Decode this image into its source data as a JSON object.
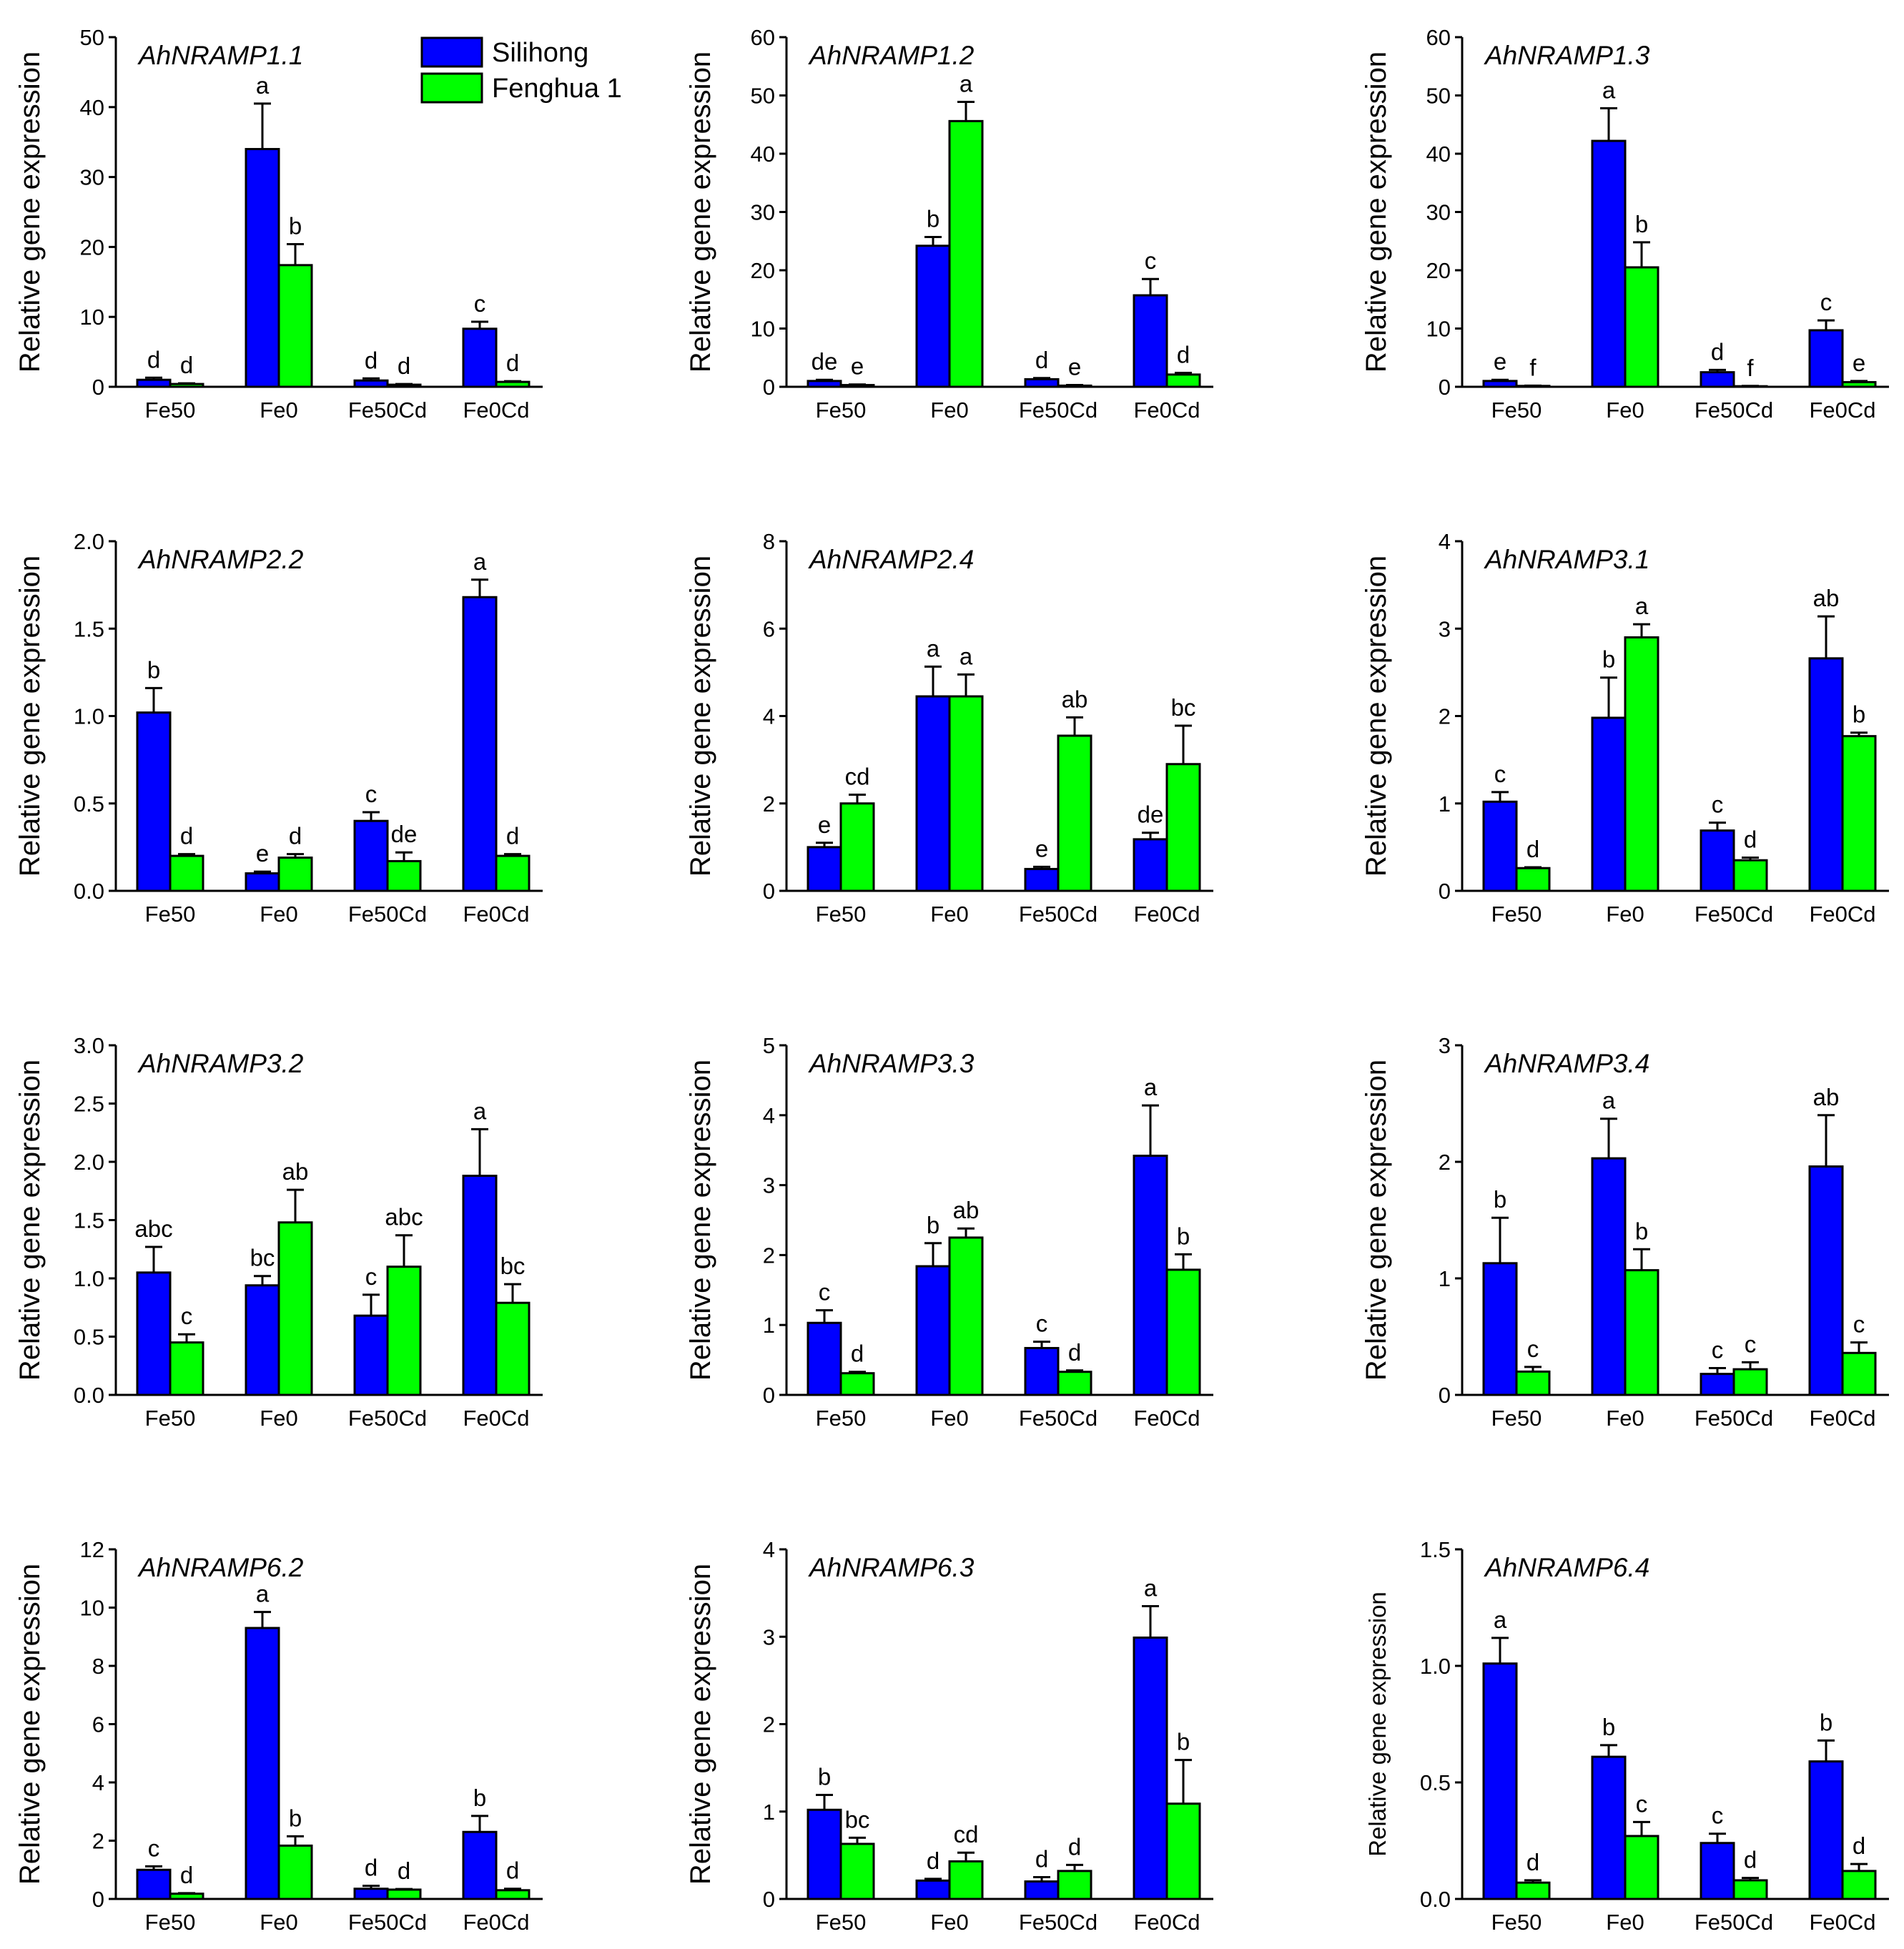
{
  "colors": {
    "silihong": "#0000ff",
    "fenghua": "#00ff00",
    "axis": "#000000"
  },
  "legend": [
    {
      "name": "Silihong",
      "color": "#0000ff"
    },
    {
      "name": "Fenghua 1",
      "color": "#00ff00"
    }
  ],
  "chart_data": [
    {
      "type": "bar",
      "title": "AhNRAMP1.1",
      "ylabel": "Relative gene expression",
      "categories": [
        "Fe50",
        "Fe0",
        "Fe50Cd",
        "Fe0Cd"
      ],
      "ylim": [
        0,
        50
      ],
      "yticks": [
        "0",
        "10",
        "20",
        "30",
        "40",
        "50"
      ],
      "series": [
        {
          "name": "Silihong",
          "values": [
            1.0,
            34.0,
            0.9,
            8.3
          ],
          "errors": [
            0.3,
            6.5,
            0.3,
            1.0
          ],
          "letters": [
            "d",
            "a",
            "d",
            "c"
          ]
        },
        {
          "name": "Fenghua 1",
          "values": [
            0.4,
            17.4,
            0.3,
            0.7
          ],
          "errors": [
            0.1,
            3.0,
            0.1,
            0.1
          ],
          "letters": [
            "d",
            "b",
            "d",
            "d"
          ]
        }
      ]
    },
    {
      "type": "bar",
      "title": "AhNRAMP1.2",
      "ylabel": "Relative gene expression",
      "categories": [
        "Fe50",
        "Fe0",
        "Fe50Cd",
        "Fe0Cd"
      ],
      "ylim": [
        0,
        60
      ],
      "yticks": [
        "0",
        "10",
        "20",
        "30",
        "40",
        "50",
        "60"
      ],
      "series": [
        {
          "name": "Silihong",
          "values": [
            1.0,
            24.2,
            1.3,
            15.7
          ],
          "errors": [
            0.2,
            1.5,
            0.2,
            2.8
          ],
          "letters": [
            "de",
            "b",
            "d",
            "c"
          ]
        },
        {
          "name": "Fenghua 1",
          "values": [
            0.3,
            45.6,
            0.2,
            2.1
          ],
          "errors": [
            0.1,
            3.3,
            0.1,
            0.3
          ],
          "letters": [
            "e",
            "a",
            "e",
            "d"
          ]
        }
      ]
    },
    {
      "type": "bar",
      "title": "AhNRAMP1.3",
      "ylabel": "Relative gene expression",
      "categories": [
        "Fe50",
        "Fe0",
        "Fe50Cd",
        "Fe0Cd"
      ],
      "ylim": [
        0,
        60
      ],
      "yticks": [
        "0",
        "10",
        "20",
        "30",
        "40",
        "50",
        "60"
      ],
      "series": [
        {
          "name": "Silihong",
          "values": [
            1.0,
            42.2,
            2.5,
            9.7
          ],
          "errors": [
            0.2,
            5.6,
            0.4,
            1.7
          ],
          "letters": [
            "e",
            "a",
            "d",
            "c"
          ]
        },
        {
          "name": "Fenghua 1",
          "values": [
            0.15,
            20.5,
            0.1,
            0.8
          ],
          "errors": [
            0.05,
            4.3,
            0.05,
            0.2
          ],
          "letters": [
            "f",
            "b",
            "f",
            "e"
          ]
        }
      ]
    },
    {
      "type": "bar",
      "title": "AhNRAMP2.2",
      "ylabel": "Relative gene expression",
      "categories": [
        "Fe50",
        "Fe0",
        "Fe50Cd",
        "Fe0Cd"
      ],
      "ylim": [
        0,
        2
      ],
      "yticks": [
        "0.0",
        "0.5",
        "1.0",
        "1.5",
        "2.0"
      ],
      "series": [
        {
          "name": "Silihong",
          "values": [
            1.02,
            0.1,
            0.4,
            1.68
          ],
          "errors": [
            0.14,
            0.01,
            0.05,
            0.1
          ],
          "letters": [
            "b",
            "e",
            "c",
            "a"
          ]
        },
        {
          "name": "Fenghua 1",
          "values": [
            0.2,
            0.19,
            0.17,
            0.2
          ],
          "errors": [
            0.01,
            0.02,
            0.05,
            0.01
          ],
          "letters": [
            "d",
            "d",
            "de",
            "d"
          ]
        }
      ]
    },
    {
      "type": "bar",
      "title": "AhNRAMP2.4",
      "ylabel": "Relative gene expression",
      "categories": [
        "Fe50",
        "Fe0",
        "Fe50Cd",
        "Fe0Cd"
      ],
      "ylim": [
        0,
        8
      ],
      "yticks": [
        "0",
        "2",
        "4",
        "6",
        "8"
      ],
      "series": [
        {
          "name": "Silihong",
          "values": [
            1.0,
            4.45,
            0.5,
            1.18
          ],
          "errors": [
            0.1,
            0.68,
            0.05,
            0.15
          ],
          "letters": [
            "e",
            "a",
            "e",
            "de"
          ]
        },
        {
          "name": "Fenghua 1",
          "values": [
            2.0,
            4.45,
            3.55,
            2.9
          ],
          "errors": [
            0.2,
            0.5,
            0.42,
            0.88
          ],
          "letters": [
            "cd",
            "a",
            "ab",
            "bc"
          ]
        }
      ]
    },
    {
      "type": "bar",
      "title": "AhNRAMP3.1",
      "ylabel": "Relative gene expression",
      "categories": [
        "Fe50",
        "Fe0",
        "Fe50Cd",
        "Fe0Cd"
      ],
      "ylim": [
        0,
        4
      ],
      "yticks": [
        "0",
        "1",
        "2",
        "3",
        "4"
      ],
      "series": [
        {
          "name": "Silihong",
          "values": [
            1.02,
            1.98,
            0.69,
            2.66
          ],
          "errors": [
            0.11,
            0.46,
            0.09,
            0.48
          ],
          "letters": [
            "c",
            "b",
            "c",
            "ab"
          ]
        },
        {
          "name": "Fenghua 1",
          "values": [
            0.26,
            2.9,
            0.35,
            1.77
          ],
          "errors": [
            0.01,
            0.15,
            0.03,
            0.04
          ],
          "letters": [
            "d",
            "a",
            "d",
            "b"
          ]
        }
      ]
    },
    {
      "type": "bar",
      "title": "AhNRAMP3.2",
      "ylabel": "Relative gene expression",
      "categories": [
        "Fe50",
        "Fe0",
        "Fe50Cd",
        "Fe0Cd"
      ],
      "ylim": [
        0,
        3
      ],
      "yticks": [
        "0.0",
        "0.5",
        "1.0",
        "1.5",
        "2.0",
        "2.5",
        "3.0"
      ],
      "series": [
        {
          "name": "Silihong",
          "values": [
            1.05,
            0.94,
            0.68,
            1.88
          ],
          "errors": [
            0.22,
            0.08,
            0.18,
            0.4
          ],
          "letters": [
            "abc",
            "bc",
            "c",
            "a"
          ]
        },
        {
          "name": "Fenghua 1",
          "values": [
            0.45,
            1.48,
            1.1,
            0.79
          ],
          "errors": [
            0.07,
            0.28,
            0.27,
            0.16
          ],
          "letters": [
            "c",
            "ab",
            "abc",
            "bc"
          ]
        }
      ]
    },
    {
      "type": "bar",
      "title": "AhNRAMP3.3",
      "ylabel": "Relative gene expression",
      "categories": [
        "Fe50",
        "Fe0",
        "Fe50Cd",
        "Fe0Cd"
      ],
      "ylim": [
        0,
        5
      ],
      "yticks": [
        "0",
        "1",
        "2",
        "3",
        "4",
        "5"
      ],
      "series": [
        {
          "name": "Silihong",
          "values": [
            1.03,
            1.84,
            0.67,
            3.42
          ],
          "errors": [
            0.18,
            0.33,
            0.09,
            0.72
          ],
          "letters": [
            "c",
            "b",
            "c",
            "a"
          ]
        },
        {
          "name": "Fenghua 1",
          "values": [
            0.31,
            2.25,
            0.33,
            1.79
          ],
          "errors": [
            0.02,
            0.13,
            0.02,
            0.22
          ],
          "letters": [
            "d",
            "ab",
            "d",
            "b"
          ]
        }
      ]
    },
    {
      "type": "bar",
      "title": "AhNRAMP3.4",
      "ylabel": "Relative gene expression",
      "categories": [
        "Fe50",
        "Fe0",
        "Fe50Cd",
        "Fe0Cd"
      ],
      "ylim": [
        0,
        3
      ],
      "yticks": [
        "0",
        "1",
        "2",
        "3"
      ],
      "series": [
        {
          "name": "Silihong",
          "values": [
            1.13,
            2.03,
            0.18,
            1.96
          ],
          "errors": [
            0.39,
            0.34,
            0.05,
            0.44
          ],
          "letters": [
            "b",
            "a",
            "c",
            "ab"
          ]
        },
        {
          "name": "Fenghua 1",
          "values": [
            0.2,
            1.07,
            0.22,
            0.36
          ],
          "errors": [
            0.04,
            0.18,
            0.06,
            0.09
          ],
          "letters": [
            "c",
            "b",
            "c",
            "c"
          ]
        }
      ]
    },
    {
      "type": "bar",
      "title": "AhNRAMP6.2",
      "ylabel": "Relative gene expression",
      "categories": [
        "Fe50",
        "Fe0",
        "Fe50Cd",
        "Fe0Cd"
      ],
      "ylim": [
        0,
        12
      ],
      "yticks": [
        "0",
        "2",
        "4",
        "6",
        "8",
        "10",
        "12"
      ],
      "series": [
        {
          "name": "Silihong",
          "values": [
            1.0,
            9.3,
            0.35,
            2.3
          ],
          "errors": [
            0.12,
            0.55,
            0.1,
            0.55
          ],
          "letters": [
            "c",
            "a",
            "d",
            "b"
          ]
        },
        {
          "name": "Fenghua 1",
          "values": [
            0.18,
            1.83,
            0.32,
            0.3
          ],
          "errors": [
            0.02,
            0.32,
            0.02,
            0.05
          ],
          "letters": [
            "d",
            "b",
            "d",
            "d"
          ]
        }
      ]
    },
    {
      "type": "bar",
      "title": "AhNRAMP6.3",
      "ylabel": "Relative gene expression",
      "categories": [
        "Fe50",
        "Fe0",
        "Fe50Cd",
        "Fe0Cd"
      ],
      "ylim": [
        0,
        4
      ],
      "yticks": [
        "0",
        "1",
        "2",
        "3",
        "4"
      ],
      "series": [
        {
          "name": "Silihong",
          "values": [
            1.02,
            0.21,
            0.2,
            2.99
          ],
          "errors": [
            0.17,
            0.02,
            0.05,
            0.36
          ],
          "letters": [
            "b",
            "d",
            "d",
            "a"
          ]
        },
        {
          "name": "Fenghua 1",
          "values": [
            0.63,
            0.43,
            0.32,
            1.09
          ],
          "errors": [
            0.07,
            0.1,
            0.07,
            0.5
          ],
          "letters": [
            "bc",
            "cd",
            "d",
            "b"
          ]
        }
      ]
    },
    {
      "type": "bar",
      "title": "AhNRAMP6.4",
      "ylabel": "Relative gene expression",
      "categories": [
        "Fe50",
        "Fe0",
        "Fe50Cd",
        "Fe0Cd"
      ],
      "ylim": [
        0,
        1.5
      ],
      "yticks": [
        "0.0",
        "0.5",
        "1.0",
        "1.5"
      ],
      "series": [
        {
          "name": "Silihong",
          "values": [
            1.01,
            0.61,
            0.24,
            0.59
          ],
          "errors": [
            0.11,
            0.05,
            0.04,
            0.09
          ],
          "letters": [
            "a",
            "b",
            "c",
            "b"
          ]
        },
        {
          "name": "Fenghua 1",
          "values": [
            0.07,
            0.27,
            0.08,
            0.12
          ],
          "errors": [
            0.01,
            0.06,
            0.01,
            0.03
          ],
          "letters": [
            "d",
            "c",
            "d",
            "d"
          ]
        }
      ]
    }
  ]
}
